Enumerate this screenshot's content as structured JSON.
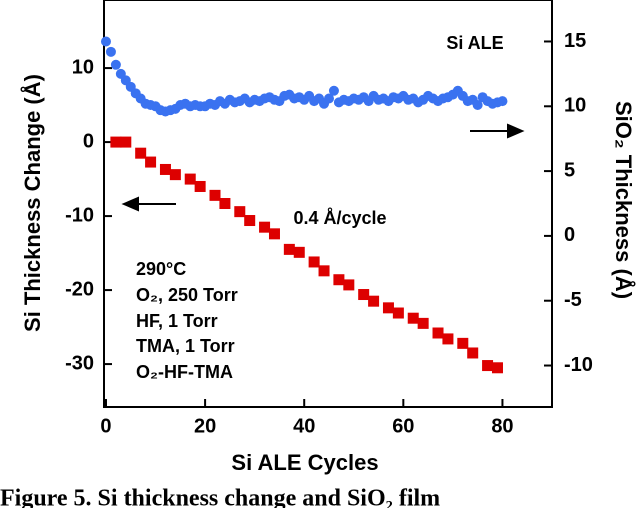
{
  "chart_data": {
    "type": "scatter",
    "xlabel": "Si ALE Cycles",
    "ylabel": "Si Thickness Change (Å)",
    "y2label": "SiO₂ Thickness (Å)",
    "annotations": [
      "Si ALE",
      "0.4 Å/cycle",
      "290°C",
      "O₂, 250 Torr",
      "HF, 1 Torr",
      "TMA, 1 Torr",
      "O₂-HF-TMA"
    ],
    "caption": "Figure 5.  Si thickness change and SiO₂ film",
    "xlim": [
      -0.4,
      90
    ],
    "xticks": [
      0,
      20,
      40,
      60,
      80
    ],
    "ylim": [
      -35.8,
      19.2
    ],
    "yticks": [
      -30,
      -20,
      -10,
      0,
      10
    ],
    "y2lim": [
      -13.2,
      18.2
    ],
    "y2ticks": [
      -10,
      -5,
      0,
      5,
      10,
      15
    ],
    "series": [
      {
        "color": "#dd0000",
        "marker": "square",
        "axis": "y",
        "x": [
          2,
          4,
          7,
          9,
          12,
          14,
          17,
          19,
          22,
          24,
          27,
          29,
          32,
          34,
          37,
          39,
          42,
          44,
          47,
          49,
          52,
          54,
          57,
          59,
          62,
          64,
          67,
          69,
          72,
          74,
          77,
          79
        ],
        "values": [
          0,
          0,
          -1.5,
          -2.7,
          -3.7,
          -4.4,
          -5,
          -6,
          -7.2,
          -8.3,
          -9.4,
          -10.6,
          -11.5,
          -12.4,
          -14.5,
          -14.9,
          -16.2,
          -17.4,
          -18.6,
          -19.3,
          -20.6,
          -21.5,
          -22.4,
          -23.1,
          -23.8,
          -24.5,
          -25.8,
          -26.6,
          -27.2,
          -28.5,
          -30.2,
          -30.5
        ]
      },
      {
        "color": "#3a72f0",
        "marker": "circle",
        "axis": "y2",
        "x": [
          0,
          1,
          2,
          3,
          4,
          5,
          6,
          7,
          8,
          9,
          10,
          11,
          12,
          13,
          14,
          15,
          16,
          17,
          18,
          19,
          20,
          21,
          22,
          23,
          24,
          25,
          26,
          27,
          28,
          29,
          30,
          31,
          32,
          33,
          34,
          35,
          36,
          37,
          38,
          39,
          40,
          41,
          42,
          43,
          44,
          45,
          46,
          47,
          48,
          49,
          50,
          51,
          52,
          53,
          54,
          55,
          56,
          57,
          58,
          59,
          60,
          61,
          62,
          63,
          64,
          65,
          66,
          67,
          68,
          69,
          70,
          71,
          72,
          73,
          74,
          75,
          76,
          77,
          78,
          79,
          80
        ],
        "values": [
          15,
          14.2,
          13.2,
          12.5,
          12,
          11.5,
          11,
          10.6,
          10.2,
          10.1,
          10,
          9.7,
          9.6,
          9.7,
          9.8,
          10.1,
          10.2,
          10,
          10.1,
          10,
          10,
          10.2,
          10.1,
          10.4,
          10.2,
          10.5,
          10.3,
          10.4,
          10.6,
          10.3,
          10.5,
          10.4,
          10.6,
          10.7,
          10.5,
          10.4,
          10.8,
          10.9,
          10.6,
          10.7,
          10.5,
          10.8,
          10.4,
          10.6,
          10.2,
          10.6,
          11.2,
          10.3,
          10.5,
          10.4,
          10.6,
          10.5,
          10.7,
          10.4,
          10.8,
          10.5,
          10.6,
          10.4,
          10.7,
          10.6,
          10.8,
          10.5,
          10.6,
          10.3,
          10.5,
          10.8,
          10.6,
          10.4,
          10.6,
          10.7,
          10.9,
          11.2,
          10.8,
          10.4,
          10.5,
          10.1,
          10.7,
          10.4,
          10.2,
          10.3,
          10.4
        ]
      }
    ]
  }
}
